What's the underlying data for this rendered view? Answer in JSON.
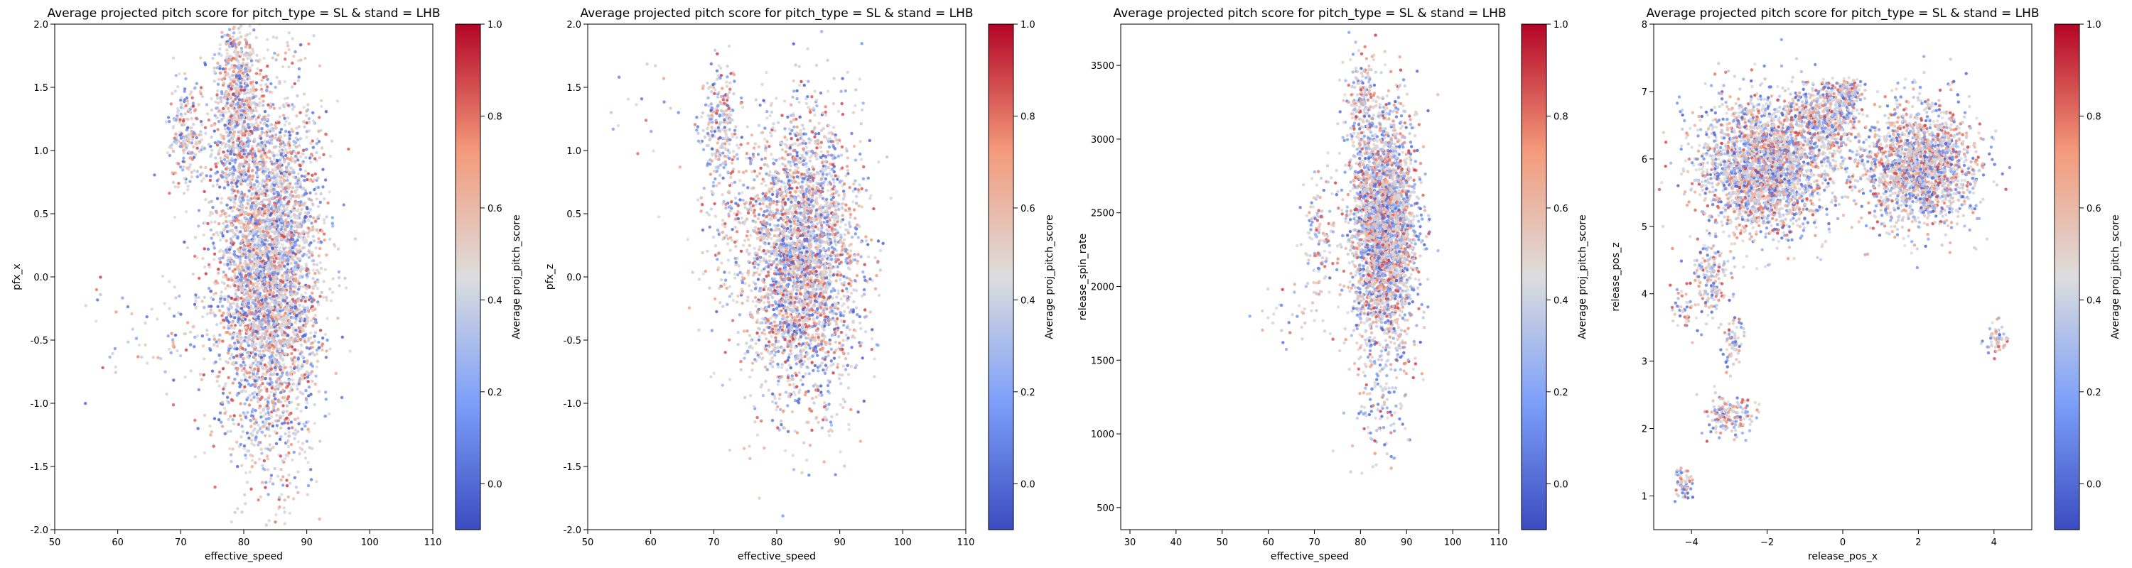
{
  "chart_data": [
    {
      "type": "scatter",
      "title": "Average projected pitch score for pitch_type = SL & stand = LHB",
      "xlabel": "effective_speed",
      "ylabel": "pfx_x",
      "xlim": [
        50,
        110
      ],
      "ylim": [
        -2.0,
        2.0
      ],
      "xticks": [
        "50",
        "60",
        "70",
        "80",
        "90",
        "100",
        "110"
      ],
      "yticks": [
        "-2.0",
        "-1.5",
        "-1.0",
        "-0.5",
        "0.0",
        "0.5",
        "1.0",
        "1.5",
        "2.0"
      ],
      "colorbar": {
        "label": "Average proj_pitch_score",
        "ticks": [
          "0.0",
          "0.2",
          "0.4",
          "0.6",
          "0.8",
          "1.0"
        ],
        "range": [
          -0.1,
          1.0
        ],
        "cmap": "coolwarm"
      },
      "clusters": [
        {
          "cx": 84,
          "cy": 0.05,
          "sx": 4.2,
          "sy": 0.72,
          "n": 4200
        },
        {
          "cx": 79,
          "cy": 1.35,
          "sx": 1.8,
          "sy": 0.35,
          "n": 700
        },
        {
          "cx": 71,
          "cy": 1.15,
          "sx": 1.6,
          "sy": 0.22,
          "n": 220
        },
        {
          "cx": 70,
          "cy": -0.45,
          "sx": 3.5,
          "sy": 0.25,
          "n": 70
        },
        {
          "cx": 58,
          "cy": -0.35,
          "sx": 3.0,
          "sy": 0.3,
          "n": 18
        }
      ],
      "grid": false
    },
    {
      "type": "scatter",
      "title": "Average projected pitch score for pitch_type = SL & stand = LHB",
      "xlabel": "effective_speed",
      "ylabel": "pfx_z",
      "xlim": [
        50,
        110
      ],
      "ylim": [
        -2.0,
        2.0
      ],
      "xticks": [
        "50",
        "60",
        "70",
        "80",
        "90",
        "100",
        "110"
      ],
      "yticks": [
        "-2.0",
        "-1.5",
        "-1.0",
        "-0.5",
        "0.0",
        "0.5",
        "1.0",
        "1.5",
        "2.0"
      ],
      "colorbar": {
        "label": "Average proj_pitch_score",
        "ticks": [
          "0.0",
          "0.2",
          "0.4",
          "0.6",
          "0.8",
          "1.0"
        ],
        "range": [
          -0.1,
          1.0
        ],
        "cmap": "coolwarm"
      },
      "clusters": [
        {
          "cx": 84,
          "cy": 0.15,
          "sx": 4.5,
          "sy": 0.55,
          "n": 3200
        },
        {
          "cx": 71,
          "cy": 1.2,
          "sx": 1.5,
          "sy": 0.25,
          "n": 260
        },
        {
          "cx": 72,
          "cy": 0.4,
          "sx": 2.5,
          "sy": 0.4,
          "n": 120
        },
        {
          "cx": 60,
          "cy": 1.3,
          "sx": 4.0,
          "sy": 0.3,
          "n": 20
        }
      ],
      "grid": false
    },
    {
      "type": "scatter",
      "title": "Average projected pitch score for pitch_type = SL & stand = LHB",
      "xlabel": "effective_speed",
      "ylabel": "release_spin_rate",
      "xlim": [
        28,
        110
      ],
      "ylim": [
        350,
        3780
      ],
      "xticks": [
        "30",
        "40",
        "50",
        "60",
        "70",
        "80",
        "90",
        "100",
        "110"
      ],
      "yticks": [
        "500",
        "1000",
        "1500",
        "2000",
        "2500",
        "3000",
        "3500"
      ],
      "colorbar": {
        "label": "Average proj_pitch_score",
        "ticks": [
          "0.0",
          "0.2",
          "0.4",
          "0.6",
          "0.8",
          "1.0"
        ],
        "range": [
          -0.1,
          1.0
        ],
        "cmap": "coolwarm"
      },
      "clusters": [
        {
          "cx": 85,
          "cy": 2400,
          "sx": 3.5,
          "sy": 380,
          "n": 3200
        },
        {
          "cx": 80,
          "cy": 3250,
          "sx": 1.8,
          "sy": 160,
          "n": 160
        },
        {
          "cx": 84,
          "cy": 1250,
          "sx": 3.0,
          "sy": 260,
          "n": 140
        },
        {
          "cx": 71,
          "cy": 2350,
          "sx": 1.8,
          "sy": 220,
          "n": 130
        },
        {
          "cx": 65,
          "cy": 1750,
          "sx": 5.0,
          "sy": 150,
          "n": 35
        }
      ],
      "grid": false
    },
    {
      "type": "scatter",
      "title": "Average projected pitch score for pitch_type = SL & stand = LHB",
      "xlabel": "release_pos_x",
      "ylabel": "release_pos_z",
      "xlim": [
        -5,
        5
      ],
      "ylim": [
        0.5,
        8
      ],
      "xticks": [
        "−4",
        "−2",
        "0",
        "2",
        "4"
      ],
      "xtick_values": [
        -4,
        -2,
        0,
        2,
        4
      ],
      "yticks": [
        "1",
        "2",
        "3",
        "4",
        "5",
        "6",
        "7",
        "8"
      ],
      "colorbar": {
        "label": "Average proj_pitch_score",
        "ticks": [
          "0.0",
          "0.2",
          "0.4",
          "0.6",
          "0.8",
          "1.0"
        ],
        "range": [
          -0.1,
          1.0
        ],
        "cmap": "coolwarm"
      },
      "clusters": [
        {
          "cx": -2.1,
          "cy": 5.9,
          "sx": 0.85,
          "sy": 0.5,
          "n": 2600
        },
        {
          "cx": 2.0,
          "cy": 5.9,
          "sx": 0.75,
          "sy": 0.45,
          "n": 1900
        },
        {
          "cx": -0.5,
          "cy": 6.6,
          "sx": 0.45,
          "sy": 0.3,
          "n": 500
        },
        {
          "cx": 0.1,
          "cy": 6.95,
          "sx": 0.2,
          "sy": 0.12,
          "n": 180
        },
        {
          "cx": -3.5,
          "cy": 4.2,
          "sx": 0.25,
          "sy": 0.3,
          "n": 160
        },
        {
          "cx": -2.9,
          "cy": 3.3,
          "sx": 0.12,
          "sy": 0.25,
          "n": 70
        },
        {
          "cx": -3.0,
          "cy": 2.2,
          "sx": 0.35,
          "sy": 0.15,
          "n": 150
        },
        {
          "cx": -4.2,
          "cy": 1.2,
          "sx": 0.12,
          "sy": 0.12,
          "n": 60
        },
        {
          "cx": -4.2,
          "cy": 3.8,
          "sx": 0.2,
          "sy": 0.15,
          "n": 40
        },
        {
          "cx": 4.1,
          "cy": 3.3,
          "sx": 0.15,
          "sy": 0.15,
          "n": 60
        }
      ],
      "grid": false
    }
  ]
}
